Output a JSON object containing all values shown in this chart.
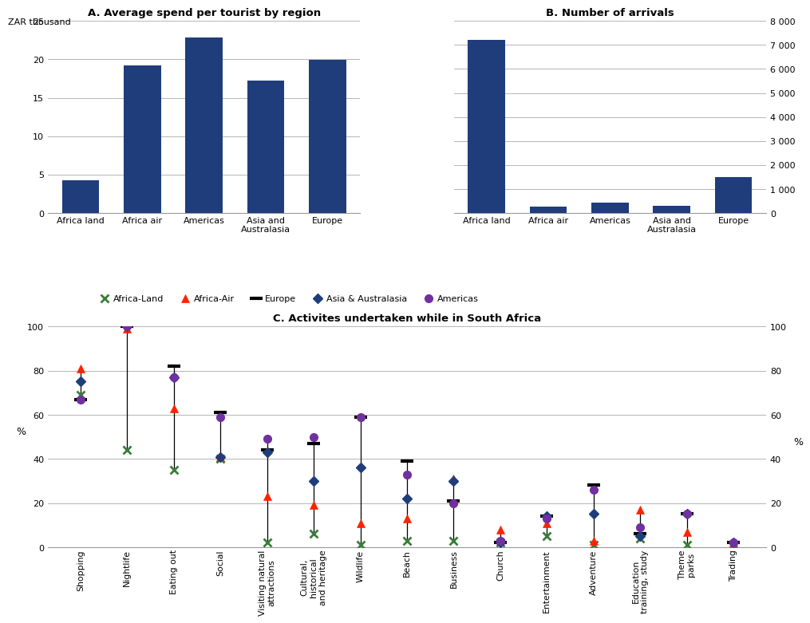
{
  "chart_A": {
    "title": "A. Average spend per tourist by region",
    "categories": [
      "Africa land",
      "Africa air",
      "Americas",
      "Asia and\nAustralasia",
      "Europe"
    ],
    "values": [
      4.3,
      19.2,
      22.8,
      17.2,
      19.9
    ],
    "bar_color": "#1F3D7A",
    "ylim": [
      0,
      25
    ],
    "yticks": [
      0,
      5,
      10,
      15,
      20,
      25
    ]
  },
  "chart_B": {
    "title": "B. Number of arrivals",
    "categories": [
      "Africa land",
      "Africa air",
      "Americas",
      "Asia and\nAustralasia",
      "Europe"
    ],
    "values": [
      7200,
      280,
      420,
      300,
      1500
    ],
    "bar_color": "#1F3D7A",
    "ylim": [
      0,
      8000
    ],
    "yticks": [
      0,
      1000,
      2000,
      3000,
      4000,
      5000,
      6000,
      7000,
      8000
    ],
    "yticklabels": [
      "0",
      "1 000",
      "2 000",
      "3 000",
      "4 000",
      "5 000",
      "6 000",
      "7 000",
      "8 000"
    ]
  },
  "chart_C": {
    "title": "C. Activites undertaken while in South Africa",
    "categories": [
      "Shopping",
      "Nightlife",
      "Eating out",
      "Social",
      "Visiting natural\nattractions",
      "Cultural,\nhistorical\nand heritage",
      "Wildlife",
      "Beach",
      "Business",
      "Church",
      "Entertainment",
      "Adventure",
      "Education\ntraining, study",
      "Theme\nparks",
      "Trading"
    ],
    "africa_land": [
      69,
      44,
      35,
      40,
      2,
      6,
      1,
      3,
      3,
      2,
      5,
      1,
      4,
      1,
      1
    ],
    "africa_air": [
      81,
      99,
      63,
      41,
      23,
      19,
      11,
      13,
      31,
      8,
      11,
      3,
      17,
      7,
      2
    ],
    "europe": [
      67,
      100,
      82,
      61,
      44,
      47,
      59,
      39,
      21,
      2,
      14,
      28,
      6,
      15,
      2
    ],
    "asia_australasia": [
      75,
      100,
      77,
      41,
      43,
      30,
      36,
      22,
      30,
      2,
      14,
      15,
      5,
      15,
      2
    ],
    "americas": [
      67,
      100,
      77,
      59,
      49,
      50,
      59,
      33,
      20,
      3,
      13,
      26,
      9,
      15,
      2
    ],
    "ylim": [
      0,
      100
    ],
    "yticks": [
      0,
      20,
      40,
      60,
      80,
      100
    ]
  },
  "zar_label": "ZAR thousand",
  "background_color": "#FFFFFF",
  "grid_color": "#AAAAAA",
  "bar_color": "#1F3D7A",
  "africa_land_color": "#3A7D3A",
  "africa_air_color": "#FF2200",
  "europe_color": "#000000",
  "asia_color": "#1F3D7A",
  "americas_color": "#7030A0"
}
